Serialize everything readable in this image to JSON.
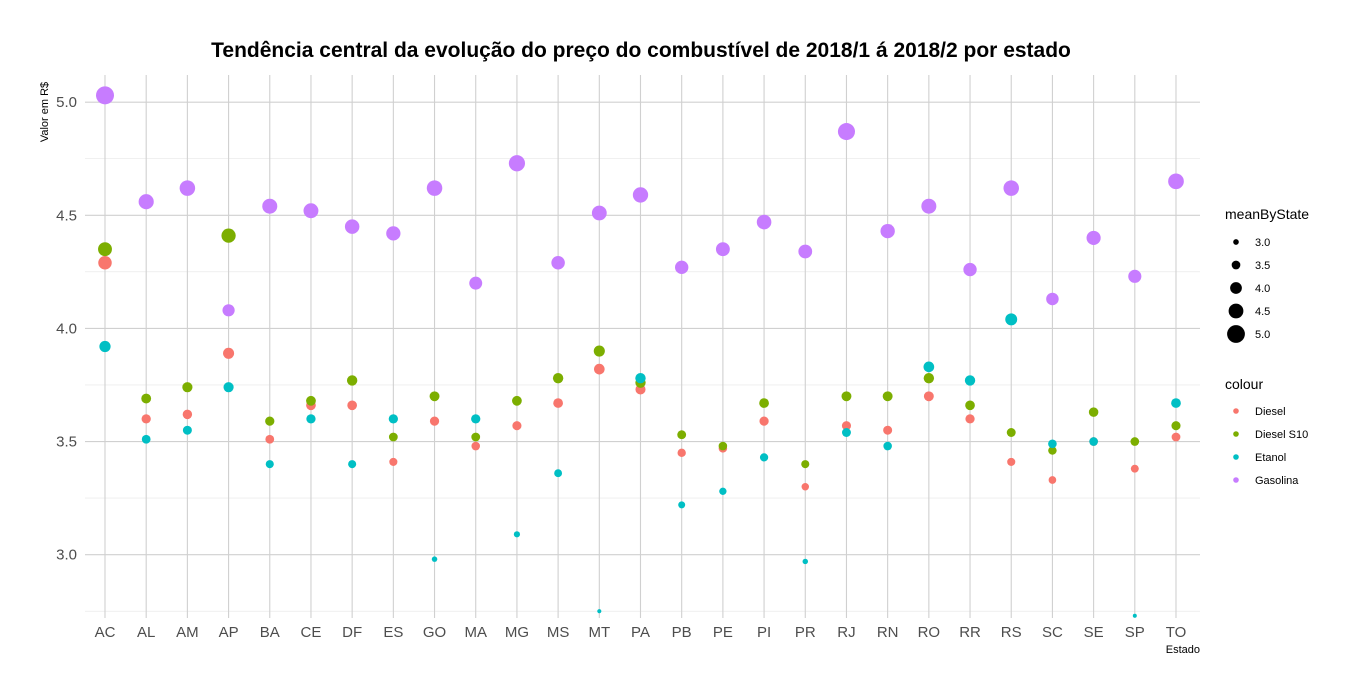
{
  "chart_data": {
    "type": "scatter",
    "title": "Tendência central da evolução do preço do combustível de 2018/1 á 2018/2 por estado",
    "xlabel": "Estado",
    "ylabel": "Valor em R$",
    "categories": [
      "AC",
      "AL",
      "AM",
      "AP",
      "BA",
      "CE",
      "DF",
      "ES",
      "GO",
      "MA",
      "MG",
      "MS",
      "MT",
      "PA",
      "PB",
      "PE",
      "PI",
      "PR",
      "RJ",
      "RN",
      "RO",
      "RR",
      "RS",
      "SC",
      "SE",
      "SP",
      "TO"
    ],
    "ylim": [
      2.72,
      5.12
    ],
    "yticks": [
      "3.0",
      "3.5",
      "4.0",
      "4.5",
      "5.0"
    ],
    "grid": true,
    "legend_position": "right",
    "size_legend": {
      "title": "meanByState",
      "labels": [
        "3.0",
        "3.5",
        "4.0",
        "4.5",
        "5.0"
      ]
    },
    "colour_legend": {
      "title": "colour"
    },
    "series": [
      {
        "name": "Diesel",
        "color": "#F8766D",
        "values": [
          4.29,
          3.6,
          3.62,
          3.89,
          3.51,
          3.66,
          3.66,
          3.41,
          3.59,
          3.48,
          3.57,
          3.67,
          3.82,
          3.73,
          3.45,
          3.47,
          3.59,
          3.3,
          3.57,
          3.55,
          3.7,
          3.6,
          3.41,
          3.33,
          3.5,
          3.38,
          3.52
        ]
      },
      {
        "name": "Diesel S10",
        "color": "#7CAE00",
        "values": [
          4.35,
          3.69,
          3.74,
          4.41,
          3.59,
          3.68,
          3.77,
          3.52,
          3.7,
          3.52,
          3.68,
          3.78,
          3.9,
          3.76,
          3.53,
          3.48,
          3.67,
          3.4,
          3.7,
          3.7,
          3.78,
          3.66,
          3.54,
          3.46,
          3.63,
          3.5,
          3.57
        ]
      },
      {
        "name": "Etanol",
        "color": "#00BFC4",
        "values": [
          3.92,
          3.51,
          3.55,
          3.74,
          3.4,
          3.6,
          3.4,
          3.6,
          2.98,
          3.6,
          3.09,
          3.36,
          2.75,
          3.78,
          3.22,
          3.28,
          3.43,
          2.97,
          3.54,
          3.48,
          3.83,
          3.77,
          4.04,
          3.49,
          3.5,
          2.73,
          3.67
        ]
      },
      {
        "name": "Gasolina",
        "color": "#C77CFF",
        "values": [
          5.03,
          4.56,
          4.62,
          4.08,
          4.54,
          4.52,
          4.45,
          4.42,
          4.62,
          4.2,
          4.73,
          4.29,
          4.51,
          4.59,
          4.27,
          4.35,
          4.47,
          4.34,
          4.87,
          4.43,
          4.54,
          4.26,
          4.62,
          4.13,
          4.4,
          4.23,
          4.65
        ]
      }
    ]
  }
}
